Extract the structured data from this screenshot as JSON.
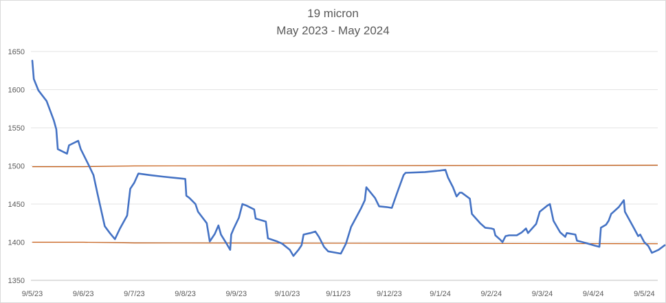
{
  "chart_data": {
    "type": "line",
    "title": "19 micron",
    "subtitle": "May 2023 - May 2024",
    "xlabel": "",
    "ylabel": "",
    "ylim": [
      1350,
      1650
    ],
    "yticks": [
      1350,
      1400,
      1450,
      1500,
      1550,
      1600,
      1650
    ],
    "grid": true,
    "legend": "none",
    "categories": [
      "9/5/23",
      "9/6/23",
      "9/7/23",
      "9/8/23",
      "9/9/23",
      "9/10/23",
      "9/11/23",
      "9/12/23",
      "9/1/24",
      "9/2/24",
      "9/3/24",
      "9/4/24",
      "9/5/24"
    ],
    "series": [
      {
        "color": "#4472c4",
        "points": [
          [
            0.0,
            1638
          ],
          [
            0.03,
            1614
          ],
          [
            0.12,
            1599
          ],
          [
            0.28,
            1585
          ],
          [
            0.42,
            1560
          ],
          [
            0.47,
            1548
          ],
          [
            0.5,
            1522
          ],
          [
            0.68,
            1516
          ],
          [
            0.72,
            1527
          ],
          [
            0.9,
            1533
          ],
          [
            0.95,
            1522
          ],
          [
            1.1,
            1502
          ],
          [
            1.2,
            1488
          ],
          [
            1.28,
            1463
          ],
          [
            1.42,
            1421
          ],
          [
            1.52,
            1412
          ],
          [
            1.62,
            1404
          ],
          [
            1.72,
            1418
          ],
          [
            1.86,
            1435
          ],
          [
            1.92,
            1470
          ],
          [
            2.0,
            1478
          ],
          [
            2.08,
            1490
          ],
          [
            2.3,
            1488
          ],
          [
            2.55,
            1486
          ],
          [
            3.0,
            1483
          ],
          [
            3.02,
            1461
          ],
          [
            3.08,
            1458
          ],
          [
            3.2,
            1450
          ],
          [
            3.25,
            1440
          ],
          [
            3.42,
            1425
          ],
          [
            3.48,
            1401
          ],
          [
            3.58,
            1411
          ],
          [
            3.65,
            1422
          ],
          [
            3.7,
            1410
          ],
          [
            3.8,
            1399
          ],
          [
            3.88,
            1390
          ],
          [
            3.9,
            1410
          ],
          [
            3.95,
            1418
          ],
          [
            4.05,
            1432
          ],
          [
            4.12,
            1450
          ],
          [
            4.2,
            1448
          ],
          [
            4.35,
            1443
          ],
          [
            4.38,
            1431
          ],
          [
            4.58,
            1427
          ],
          [
            4.62,
            1405
          ],
          [
            4.8,
            1401
          ],
          [
            4.9,
            1398
          ],
          [
            5.05,
            1390
          ],
          [
            5.12,
            1382
          ],
          [
            5.22,
            1390
          ],
          [
            5.28,
            1396
          ],
          [
            5.32,
            1410
          ],
          [
            5.45,
            1412
          ],
          [
            5.55,
            1414
          ],
          [
            5.62,
            1407
          ],
          [
            5.72,
            1394
          ],
          [
            5.8,
            1388
          ],
          [
            6.05,
            1385
          ],
          [
            6.15,
            1398
          ],
          [
            6.25,
            1420
          ],
          [
            6.45,
            1445
          ],
          [
            6.52,
            1455
          ],
          [
            6.55,
            1472
          ],
          [
            6.72,
            1458
          ],
          [
            6.8,
            1447
          ],
          [
            6.95,
            1446
          ],
          [
            7.05,
            1445
          ],
          [
            7.15,
            1464
          ],
          [
            7.28,
            1488
          ],
          [
            7.32,
            1491
          ],
          [
            7.7,
            1492
          ],
          [
            8.0,
            1494
          ],
          [
            8.1,
            1495
          ],
          [
            8.15,
            1485
          ],
          [
            8.25,
            1472
          ],
          [
            8.32,
            1460
          ],
          [
            8.38,
            1465
          ],
          [
            8.42,
            1465
          ],
          [
            8.58,
            1457
          ],
          [
            8.62,
            1437
          ],
          [
            8.78,
            1425
          ],
          [
            8.88,
            1419
          ],
          [
            9.0,
            1418
          ],
          [
            9.05,
            1417
          ],
          [
            9.08,
            1409
          ],
          [
            9.18,
            1403
          ],
          [
            9.22,
            1400
          ],
          [
            9.28,
            1408
          ],
          [
            9.35,
            1409
          ],
          [
            9.5,
            1409
          ],
          [
            9.6,
            1413
          ],
          [
            9.68,
            1418
          ],
          [
            9.72,
            1412
          ],
          [
            9.88,
            1424
          ],
          [
            9.95,
            1440
          ],
          [
            10.1,
            1448
          ],
          [
            10.15,
            1450
          ],
          [
            10.22,
            1428
          ],
          [
            10.35,
            1413
          ],
          [
            10.45,
            1407
          ],
          [
            10.48,
            1412
          ],
          [
            10.65,
            1410
          ],
          [
            10.68,
            1402
          ],
          [
            10.85,
            1399
          ],
          [
            11.0,
            1396
          ],
          [
            11.12,
            1394
          ],
          [
            11.15,
            1419
          ],
          [
            11.25,
            1423
          ],
          [
            11.3,
            1428
          ],
          [
            11.35,
            1437
          ],
          [
            11.5,
            1446
          ],
          [
            11.6,
            1455
          ],
          [
            11.62,
            1440
          ],
          [
            11.8,
            1418
          ],
          [
            11.88,
            1408
          ],
          [
            11.92,
            1410
          ],
          [
            12.0,
            1400
          ],
          [
            12.08,
            1395
          ],
          [
            12.15,
            1386
          ],
          [
            12.28,
            1390
          ],
          [
            12.4,
            1396
          ]
        ]
      }
    ],
    "reference_lines": [
      {
        "color": "#c55a11",
        "points": [
          [
            0.0,
            1499
          ],
          [
            1.0,
            1499
          ],
          [
            2.0,
            1500
          ],
          [
            12.5,
            1501
          ]
        ]
      },
      {
        "color": "#c55a11",
        "points": [
          [
            0.0,
            1400
          ],
          [
            1.0,
            1400
          ],
          [
            2.0,
            1399
          ],
          [
            12.5,
            1398
          ]
        ]
      }
    ]
  }
}
